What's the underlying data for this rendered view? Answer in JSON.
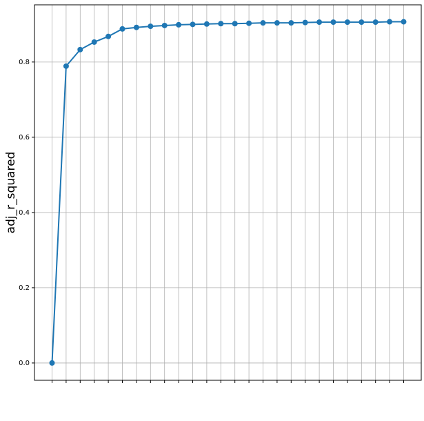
{
  "chart_data": {
    "type": "line",
    "ylabel": "adj_r_squared",
    "categories": [
      null,
      null,
      null,
      null,
      null,
      null,
      null,
      null,
      null,
      null,
      null,
      null,
      null,
      null,
      null,
      null,
      null,
      null,
      null,
      null,
      null,
      null,
      null,
      null,
      null,
      null
    ],
    "series": [
      {
        "name": null,
        "color": "#1f77b4",
        "values": [
          0.0,
          0.789,
          0.833,
          0.853,
          0.868,
          0.888,
          0.892,
          0.895,
          0.897,
          0.899,
          0.9,
          0.901,
          0.902,
          0.902,
          0.903,
          0.904,
          0.904,
          0.904,
          0.905,
          0.906,
          0.906,
          0.906,
          0.906,
          0.906,
          0.907,
          0.907
        ]
      }
    ],
    "ylim": [
      -0.046,
      0.952
    ],
    "yticks": [
      {
        "value": 0,
        "label": "0.0"
      },
      0.2,
      0.4,
      0.6,
      0.8
    ],
    "grid": true
  }
}
